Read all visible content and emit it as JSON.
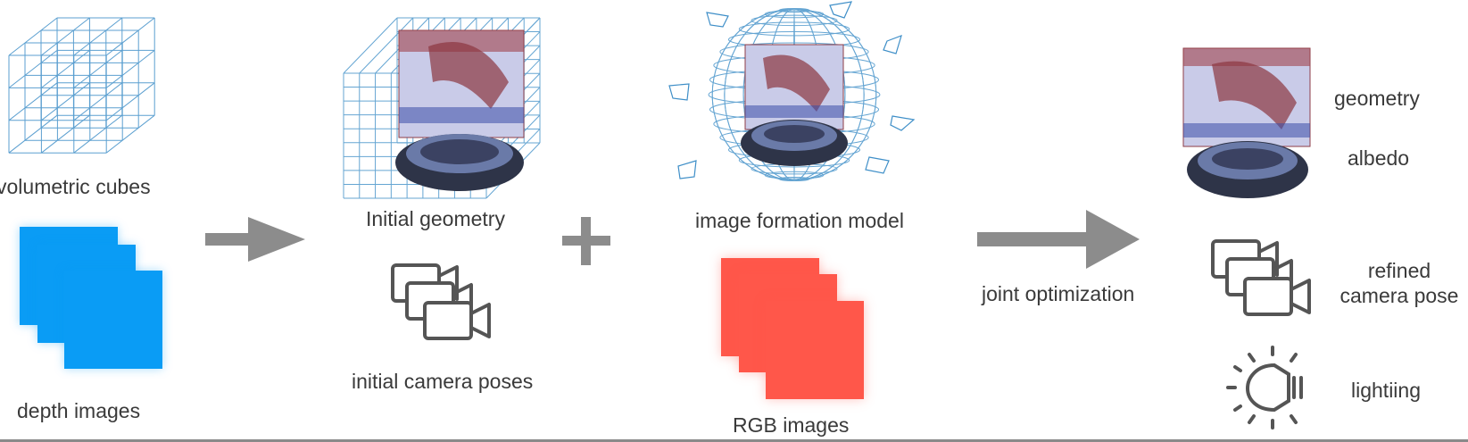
{
  "labels": {
    "volumetric_cubes": "volumetric cubes",
    "depth_images": "depth images",
    "initial_geometry": "Initial geometry",
    "initial_camera_poses": "initial camera poses",
    "image_formation_model": "image formation model",
    "rgb_images": "RGB images",
    "joint_optimization": "joint optimization",
    "geometry": "geometry",
    "albedo": "albedo",
    "refined_camera_pose_line1": "refined",
    "refined_camera_pose_line2": "camera pose",
    "lighting": "lightiing"
  },
  "colors": {
    "depth": "#0a9cf5",
    "rgb": "#ff574a",
    "grid": "#3f8fc8",
    "arrow": "#8c8c8c",
    "icon": "#555555"
  },
  "icons": [
    "camera-icon",
    "lightbulb-icon",
    "plus-icon",
    "arrow-right-icon"
  ]
}
